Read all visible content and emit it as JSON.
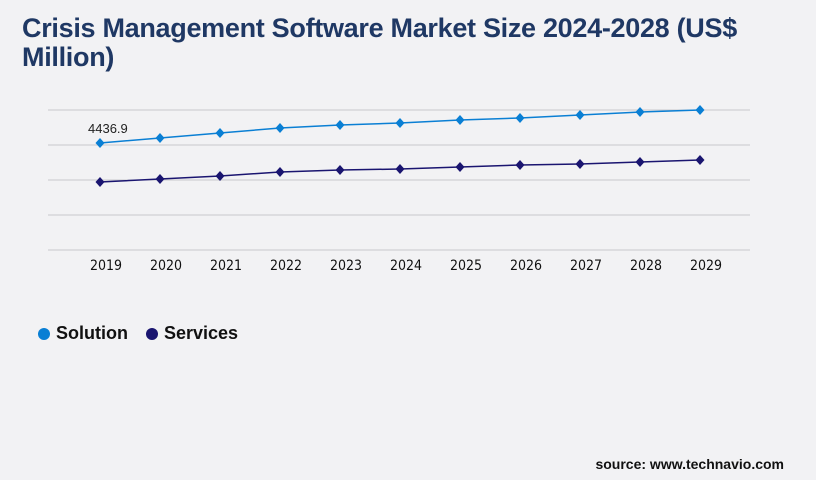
{
  "title": "Crisis Management Software Market Size 2024-2028 (US$ Million)",
  "source": "source: www.technavio.com",
  "chart_data": {
    "type": "line",
    "title": "Crisis Management Software Market Size 2024-2028 (US$ Million)",
    "categories": [
      "2019",
      "2020",
      "2021",
      "2022",
      "2023",
      "2024",
      "2025",
      "2026",
      "2027",
      "2028",
      "2029"
    ],
    "series": [
      {
        "name": "Solution",
        "color": "#0a7fd4",
        "values": [
          4436.9,
          4644,
          4852,
          5059,
          5184,
          5267,
          5391,
          5474,
          5598,
          5723,
          5806
        ]
      },
      {
        "name": "Services",
        "color": "#1a1570",
        "values": [
          2820,
          2944,
          3069,
          3235,
          3318,
          3359,
          3442,
          3525,
          3566,
          3649,
          3732
        ]
      }
    ],
    "data_labels": [
      {
        "series": "Solution",
        "category": "2019",
        "text": "4436.9"
      }
    ],
    "ylim": [
      0,
      5806
    ],
    "y_tick_labels_shown": false,
    "grid": true,
    "legend": "bottom-left"
  }
}
